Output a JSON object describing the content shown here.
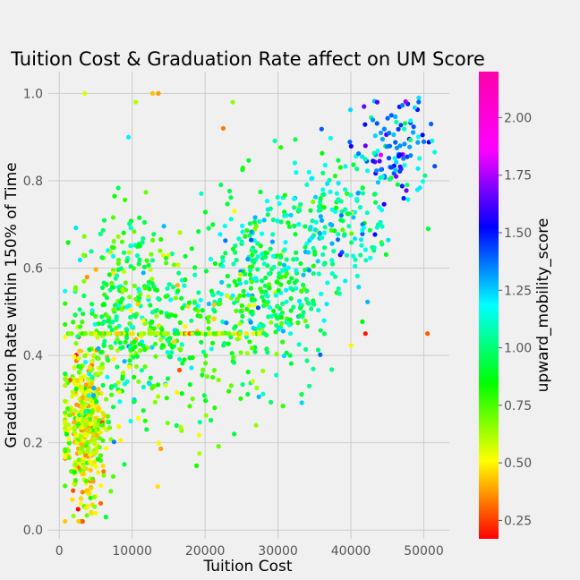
{
  "chart_data": {
    "type": "scatter",
    "title": "Tuition Cost & Graduation Rate affect on UM Score",
    "xlabel": "Tuition Cost",
    "ylabel": "Graduation Rate within 150% of Time",
    "xlim": [
      -1500,
      53500
    ],
    "ylim": [
      -0.02,
      1.05
    ],
    "xticks": [
      0,
      10000,
      20000,
      30000,
      40000,
      50000
    ],
    "yticks": [
      0.0,
      0.2,
      0.4,
      0.6,
      0.8,
      1.0
    ],
    "grid": true,
    "colorbar": {
      "label": "upward_mobility_score",
      "range": [
        0.17,
        2.2
      ],
      "ticks": [
        0.25,
        0.5,
        0.75,
        1.0,
        1.25,
        1.5,
        1.75,
        2.0
      ],
      "colormap": "hsv"
    },
    "clusters": [
      {
        "x_mean": 3500,
        "x_sd": 1500,
        "y_mean": 0.24,
        "y_sd": 0.09,
        "c_mean": 0.6,
        "c_sd": 0.15,
        "n": 420
      },
      {
        "x_mean": 9000,
        "x_sd": 3500,
        "y_mean": 0.5,
        "y_sd": 0.12,
        "c_mean": 0.95,
        "c_sd": 0.2,
        "n": 320
      },
      {
        "x_mean": 28000,
        "x_sd": 5000,
        "y_mean": 0.55,
        "y_sd": 0.1,
        "c_mean": 1.05,
        "c_sd": 0.18,
        "n": 380
      },
      {
        "x_mean": 38000,
        "x_sd": 4000,
        "y_mean": 0.72,
        "y_sd": 0.08,
        "c_mean": 1.2,
        "c_sd": 0.18,
        "n": 160
      },
      {
        "x_mean": 46000,
        "x_sd": 2500,
        "y_mean": 0.87,
        "y_sd": 0.06,
        "c_mean": 1.45,
        "c_sd": 0.2,
        "n": 110
      },
      {
        "x_mean": 18000,
        "x_sd": 5000,
        "y_mean": 0.4,
        "y_sd": 0.1,
        "c_mean": 0.75,
        "c_sd": 0.2,
        "n": 120
      }
    ],
    "flat_band": {
      "y": 0.45,
      "x_range": [
        1000,
        28000
      ],
      "c_mean": 0.65,
      "n": 90
    },
    "points": [
      {
        "x": 3500,
        "y": 1.0,
        "c": 0.6
      },
      {
        "x": 12800,
        "y": 1.0,
        "c": 0.45
      },
      {
        "x": 13600,
        "y": 1.0,
        "c": 0.4
      },
      {
        "x": 10500,
        "y": 0.98,
        "c": 0.65
      },
      {
        "x": 23800,
        "y": 0.98,
        "c": 0.7
      },
      {
        "x": 22500,
        "y": 0.92,
        "c": 0.35
      },
      {
        "x": 50500,
        "y": 0.45,
        "c": 0.3
      },
      {
        "x": 42000,
        "y": 0.45,
        "c": 0.2
      },
      {
        "x": 51000,
        "y": 0.93,
        "c": 1.5
      },
      {
        "x": 41800,
        "y": 0.97,
        "c": 1.8
      },
      {
        "x": 43600,
        "y": 0.98,
        "c": 1.75
      },
      {
        "x": 3200,
        "y": 0.02,
        "c": 0.3
      },
      {
        "x": 6400,
        "y": 0.03,
        "c": 1.0
      },
      {
        "x": 13500,
        "y": 0.1,
        "c": 0.5
      },
      {
        "x": 24000,
        "y": 0.22,
        "c": 1.0
      },
      {
        "x": 27000,
        "y": 0.24,
        "c": 0.7
      },
      {
        "x": 34300,
        "y": 0.33,
        "c": 1.1
      },
      {
        "x": 50600,
        "y": 0.69,
        "c": 1.0
      },
      {
        "x": 42000,
        "y": 0.88,
        "c": 1.8
      },
      {
        "x": 9500,
        "y": 0.9,
        "c": 1.3
      }
    ]
  }
}
